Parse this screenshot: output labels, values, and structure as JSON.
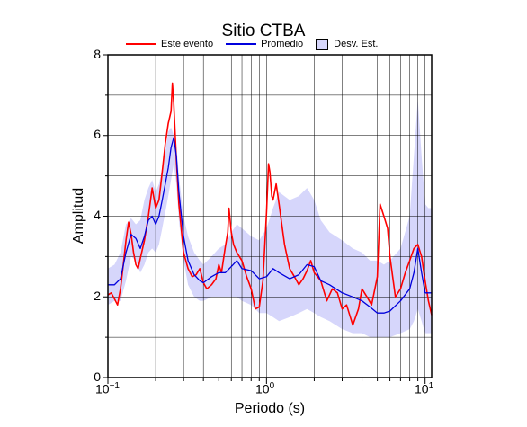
{
  "chart_data": {
    "type": "line",
    "title": "Sitio CTBA",
    "xlabel": "Periodo (s)",
    "ylabel": "Amplitud",
    "xscale": "log",
    "xlim": [
      0.1,
      11
    ],
    "ylim": [
      0,
      8
    ],
    "grid": true,
    "legend_position": "top",
    "yticks": [
      "0",
      "2",
      "4",
      "6",
      "8"
    ],
    "xticks": [
      {
        "base": "10",
        "exp": "−1"
      },
      {
        "base": "10",
        "exp": "0"
      },
      {
        "base": "10",
        "exp": "1"
      }
    ],
    "legend": {
      "event": "Este evento",
      "mean": "Promedio",
      "std": "Desv. Est."
    },
    "colors": {
      "event": "#ff0000",
      "mean": "#0000dd",
      "band_fill": "#d6d6fb",
      "grid": "#000000"
    },
    "series": [
      {
        "name": "Este evento",
        "x": [
          0.1,
          0.105,
          0.11,
          0.115,
          0.12,
          0.125,
          0.13,
          0.135,
          0.14,
          0.145,
          0.15,
          0.155,
          0.16,
          0.17,
          0.18,
          0.19,
          0.2,
          0.21,
          0.22,
          0.23,
          0.24,
          0.25,
          0.255,
          0.26,
          0.27,
          0.28,
          0.29,
          0.3,
          0.32,
          0.34,
          0.36,
          0.38,
          0.4,
          0.42,
          0.45,
          0.48,
          0.5,
          0.52,
          0.55,
          0.57,
          0.58,
          0.6,
          0.62,
          0.65,
          0.7,
          0.75,
          0.8,
          0.85,
          0.9,
          0.95,
          1.0,
          1.03,
          1.05,
          1.08,
          1.1,
          1.15,
          1.2,
          1.3,
          1.4,
          1.5,
          1.6,
          1.7,
          1.8,
          1.9,
          2.0,
          2.2,
          2.4,
          2.6,
          2.8,
          3.0,
          3.2,
          3.5,
          3.8,
          4.0,
          4.3,
          4.6,
          5.0,
          5.2,
          5.5,
          5.8,
          6.0,
          6.5,
          7.0,
          7.5,
          8.0,
          8.5,
          9.0,
          9.5,
          10.0,
          10.5,
          11.0
        ],
        "values": [
          2.05,
          2.1,
          1.95,
          1.8,
          2.2,
          2.8,
          3.4,
          3.85,
          3.55,
          3.1,
          2.8,
          2.7,
          2.95,
          3.4,
          4.0,
          4.7,
          4.2,
          4.4,
          5.1,
          5.8,
          6.3,
          6.6,
          7.3,
          6.8,
          5.4,
          4.3,
          3.7,
          3.1,
          2.7,
          2.5,
          2.55,
          2.7,
          2.35,
          2.2,
          2.3,
          2.45,
          2.8,
          2.6,
          3.25,
          3.6,
          4.2,
          3.6,
          3.3,
          3.1,
          2.9,
          2.5,
          2.2,
          1.7,
          1.75,
          2.4,
          4.1,
          5.3,
          5.1,
          4.5,
          4.4,
          4.8,
          4.3,
          3.3,
          2.7,
          2.5,
          2.3,
          2.45,
          2.65,
          2.9,
          2.6,
          2.4,
          1.9,
          2.2,
          2.1,
          1.7,
          1.8,
          1.3,
          1.7,
          2.2,
          2.0,
          1.8,
          2.5,
          4.3,
          4.0,
          3.7,
          3.0,
          2.0,
          2.2,
          2.6,
          2.9,
          3.2,
          3.3,
          3.0,
          2.4,
          1.9,
          1.55
        ]
      },
      {
        "name": "Promedio",
        "x": [
          0.1,
          0.11,
          0.12,
          0.13,
          0.14,
          0.15,
          0.16,
          0.17,
          0.18,
          0.19,
          0.2,
          0.21,
          0.22,
          0.23,
          0.24,
          0.25,
          0.26,
          0.27,
          0.28,
          0.3,
          0.32,
          0.35,
          0.38,
          0.4,
          0.45,
          0.5,
          0.55,
          0.6,
          0.65,
          0.7,
          0.8,
          0.9,
          1.0,
          1.1,
          1.2,
          1.4,
          1.6,
          1.8,
          2.0,
          2.2,
          2.5,
          3.0,
          3.5,
          4.0,
          4.5,
          5.0,
          5.5,
          6.0,
          7.0,
          8.0,
          8.5,
          9.0,
          9.5,
          10.0,
          10.5,
          11.0
        ],
        "values": [
          2.3,
          2.3,
          2.45,
          3.1,
          3.55,
          3.45,
          3.2,
          3.5,
          3.9,
          4.0,
          3.8,
          4.0,
          4.4,
          4.8,
          5.2,
          5.7,
          5.95,
          5.5,
          4.6,
          3.5,
          2.9,
          2.55,
          2.4,
          2.35,
          2.5,
          2.6,
          2.6,
          2.75,
          2.9,
          2.7,
          2.65,
          2.45,
          2.5,
          2.7,
          2.6,
          2.45,
          2.55,
          2.8,
          2.75,
          2.4,
          2.3,
          2.1,
          2.0,
          1.9,
          1.75,
          1.6,
          1.6,
          1.65,
          1.9,
          2.2,
          2.6,
          3.2,
          2.6,
          2.1,
          2.1,
          2.1
        ]
      }
    ],
    "band": {
      "name": "Desv. Est.",
      "x": [
        0.1,
        0.11,
        0.12,
        0.13,
        0.14,
        0.15,
        0.16,
        0.17,
        0.18,
        0.19,
        0.2,
        0.21,
        0.22,
        0.23,
        0.24,
        0.25,
        0.26,
        0.27,
        0.28,
        0.3,
        0.32,
        0.35,
        0.38,
        0.4,
        0.45,
        0.5,
        0.55,
        0.6,
        0.65,
        0.7,
        0.8,
        0.9,
        1.0,
        1.1,
        1.2,
        1.4,
        1.6,
        1.8,
        2.0,
        2.2,
        2.5,
        3.0,
        3.5,
        4.0,
        4.5,
        5.0,
        5.5,
        6.0,
        7.0,
        8.0,
        8.5,
        9.0,
        9.5,
        10.0,
        10.5,
        11.0
      ],
      "upper": [
        2.7,
        2.8,
        3.1,
        3.8,
        3.95,
        3.8,
        3.9,
        4.4,
        4.7,
        4.9,
        4.6,
        4.8,
        5.2,
        5.6,
        6.1,
        6.2,
        6.0,
        5.8,
        5.0,
        4.0,
        3.5,
        3.1,
        2.9,
        2.8,
        3.0,
        3.2,
        3.3,
        3.6,
        3.8,
        3.7,
        3.5,
        3.4,
        3.7,
        4.2,
        4.6,
        4.4,
        4.5,
        4.7,
        4.4,
        3.9,
        3.6,
        3.4,
        3.2,
        3.1,
        2.9,
        2.9,
        2.8,
        2.9,
        3.2,
        4.0,
        5.5,
        6.9,
        5.5,
        4.3,
        4.2,
        4.2
      ],
      "lower": [
        1.8,
        1.9,
        1.9,
        2.4,
        3.0,
        2.9,
        2.6,
        2.8,
        3.1,
        3.2,
        3.1,
        3.3,
        3.7,
        4.1,
        4.5,
        4.9,
        5.3,
        4.8,
        3.9,
        2.9,
        2.3,
        2.0,
        1.9,
        1.9,
        2.0,
        2.0,
        2.0,
        2.0,
        2.0,
        1.9,
        1.8,
        1.6,
        1.6,
        1.5,
        1.4,
        1.5,
        1.6,
        1.7,
        1.6,
        1.5,
        1.4,
        1.2,
        1.1,
        1.1,
        1.0,
        1.0,
        1.0,
        1.0,
        1.1,
        1.2,
        1.4,
        1.7,
        1.4,
        1.1,
        1.1,
        1.1
      ]
    }
  }
}
